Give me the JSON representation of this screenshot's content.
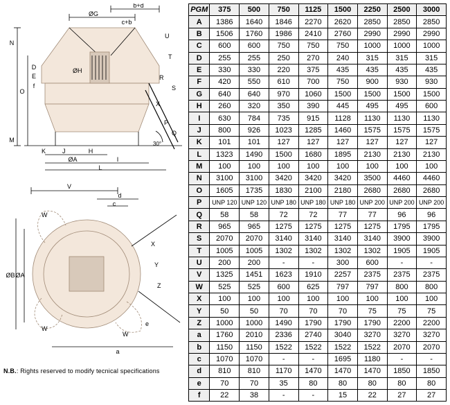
{
  "table": {
    "header_label": "PGM",
    "columns": [
      "375",
      "500",
      "750",
      "1125",
      "1500",
      "2250",
      "2500",
      "3000"
    ],
    "rows": [
      {
        "k": "A",
        "v": [
          "1386",
          "1640",
          "1846",
          "2270",
          "2620",
          "2850",
          "2850",
          "2850"
        ]
      },
      {
        "k": "B",
        "v": [
          "1506",
          "1760",
          "1986",
          "2410",
          "2760",
          "2990",
          "2990",
          "2990"
        ]
      },
      {
        "k": "C",
        "v": [
          "600",
          "600",
          "750",
          "750",
          "750",
          "1000",
          "1000",
          "1000"
        ]
      },
      {
        "k": "D",
        "v": [
          "255",
          "255",
          "250",
          "270",
          "240",
          "315",
          "315",
          "315"
        ]
      },
      {
        "k": "E",
        "v": [
          "330",
          "330",
          "220",
          "375",
          "435",
          "435",
          "435",
          "435"
        ]
      },
      {
        "k": "F",
        "v": [
          "420",
          "550",
          "610",
          "700",
          "750",
          "900",
          "930",
          "930"
        ]
      },
      {
        "k": "G",
        "v": [
          "640",
          "640",
          "970",
          "1060",
          "1500",
          "1500",
          "1500",
          "1500"
        ]
      },
      {
        "k": "H",
        "v": [
          "260",
          "320",
          "350",
          "390",
          "445",
          "495",
          "495",
          "600"
        ]
      },
      {
        "k": "I",
        "v": [
          "630",
          "784",
          "735",
          "915",
          "1128",
          "1130",
          "1130",
          "1130"
        ]
      },
      {
        "k": "J",
        "v": [
          "800",
          "926",
          "1023",
          "1285",
          "1460",
          "1575",
          "1575",
          "1575"
        ]
      },
      {
        "k": "K",
        "v": [
          "101",
          "101",
          "127",
          "127",
          "127",
          "127",
          "127",
          "127"
        ]
      },
      {
        "k": "L",
        "v": [
          "1323",
          "1490",
          "1500",
          "1680",
          "1895",
          "2130",
          "2130",
          "2130"
        ]
      },
      {
        "k": "M",
        "v": [
          "100",
          "100",
          "100",
          "100",
          "100",
          "100",
          "100",
          "100"
        ]
      },
      {
        "k": "N",
        "v": [
          "3100",
          "3100",
          "3420",
          "3420",
          "3420",
          "3500",
          "4460",
          "4460"
        ]
      },
      {
        "k": "O",
        "v": [
          "1605",
          "1735",
          "1830",
          "2100",
          "2180",
          "2680",
          "2680",
          "2680"
        ]
      },
      {
        "k": "P",
        "v": [
          "UNP 120",
          "UNP 120",
          "UNP 180",
          "UNP 180",
          "UNP 180",
          "UNP 200",
          "UNP 200",
          "UNP 200"
        ],
        "small": true
      },
      {
        "k": "Q",
        "v": [
          "58",
          "58",
          "72",
          "72",
          "77",
          "77",
          "96",
          "96"
        ]
      },
      {
        "k": "R",
        "v": [
          "965",
          "965",
          "1275",
          "1275",
          "1275",
          "1275",
          "1795",
          "1795"
        ]
      },
      {
        "k": "S",
        "v": [
          "2070",
          "2070",
          "3140",
          "3140",
          "3140",
          "3140",
          "3900",
          "3900"
        ]
      },
      {
        "k": "T",
        "v": [
          "1005",
          "1005",
          "1302",
          "1302",
          "1302",
          "1302",
          "1905",
          "1905"
        ]
      },
      {
        "k": "U",
        "v": [
          "200",
          "200",
          "-",
          "-",
          "300",
          "600",
          "-",
          "-"
        ]
      },
      {
        "k": "V",
        "v": [
          "1325",
          "1451",
          "1623",
          "1910",
          "2257",
          "2375",
          "2375",
          "2375"
        ]
      },
      {
        "k": "W",
        "v": [
          "525",
          "525",
          "600",
          "625",
          "797",
          "797",
          "800",
          "800"
        ]
      },
      {
        "k": "X",
        "v": [
          "100",
          "100",
          "100",
          "100",
          "100",
          "100",
          "100",
          "100"
        ]
      },
      {
        "k": "Y",
        "v": [
          "50",
          "50",
          "70",
          "70",
          "70",
          "75",
          "75",
          "75"
        ]
      },
      {
        "k": "Z",
        "v": [
          "1000",
          "1000",
          "1490",
          "1790",
          "1790",
          "1790",
          "2200",
          "2200"
        ]
      },
      {
        "k": "a",
        "v": [
          "1760",
          "2010",
          "2336",
          "2740",
          "3040",
          "3270",
          "3270",
          "3270"
        ]
      },
      {
        "k": "b",
        "v": [
          "1150",
          "1150",
          "1522",
          "1522",
          "1522",
          "1522",
          "2070",
          "2070"
        ]
      },
      {
        "k": "c",
        "v": [
          "1070",
          "1070",
          "-",
          "-",
          "1695",
          "1180",
          "-",
          "-"
        ]
      },
      {
        "k": "d",
        "v": [
          "810",
          "810",
          "1170",
          "1470",
          "1470",
          "1470",
          "1850",
          "1850"
        ]
      },
      {
        "k": "e",
        "v": [
          "70",
          "70",
          "35",
          "80",
          "80",
          "80",
          "80",
          "80"
        ]
      },
      {
        "k": "f",
        "v": [
          "22",
          "38",
          "-",
          "-",
          "15",
          "22",
          "27",
          "27"
        ]
      }
    ]
  },
  "note": {
    "prefix": "N.B.",
    "text": ": Rights reserved to modify tecnical specifications"
  },
  "diagram_labels": {
    "top": {
      "og": "ØG",
      "bd": "b+d",
      "cb": "c+b",
      "oh": "ØH",
      "n": "N",
      "o": "O",
      "d": "D",
      "e": "E",
      "f": "f",
      "m": "M",
      "k": "K",
      "j": "J",
      "h": "H",
      "oa": "ØA",
      "i": "I",
      "l": "L",
      "angle": "30°",
      "u": "U",
      "t": "T",
      "r": "R",
      "s": "S",
      "x": "X",
      "p": "P",
      "q": "Q"
    },
    "bot": {
      "v": "V",
      "d": "d",
      "c": "c",
      "w": "W",
      "ob": "ØB",
      "oa": "ØA",
      "x": "X",
      "y": "Y",
      "z": "Z",
      "e": "e",
      "a": "a"
    }
  },
  "colors": {
    "machine_fill": "#f3e7db",
    "machine_stroke": "#a08a76",
    "dim_line": "#000000"
  }
}
